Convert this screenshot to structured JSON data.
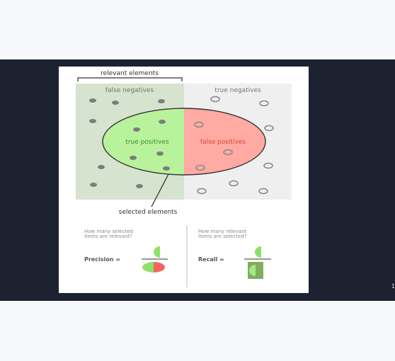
{
  "slide": {
    "page_number": "1",
    "diagram": {
      "relevant_label": "relevant elements",
      "false_negatives": "false negatives",
      "true_negatives": "true negatives",
      "true_positives": "true positives",
      "false_positives": "false positives",
      "selected_label": "selected elements"
    },
    "precision": {
      "question_line1": "How many selected",
      "question_line2": "items are relevant?",
      "label": "Precision ="
    },
    "recall": {
      "question_line1": "How many relevant",
      "question_line2": "items are selected?",
      "label": "Recall ="
    }
  },
  "colors": {
    "viewer_bg": "#1c2230",
    "false_negative_region": "#d6e3cf",
    "true_negative_region": "#efefef",
    "true_positive_fill": "#b8f39c",
    "false_positive_fill": "#ffaaa3",
    "true_positive_text": "#3f8c2a",
    "false_positive_text": "#d9453b",
    "recall_box": "#7fae5f"
  }
}
